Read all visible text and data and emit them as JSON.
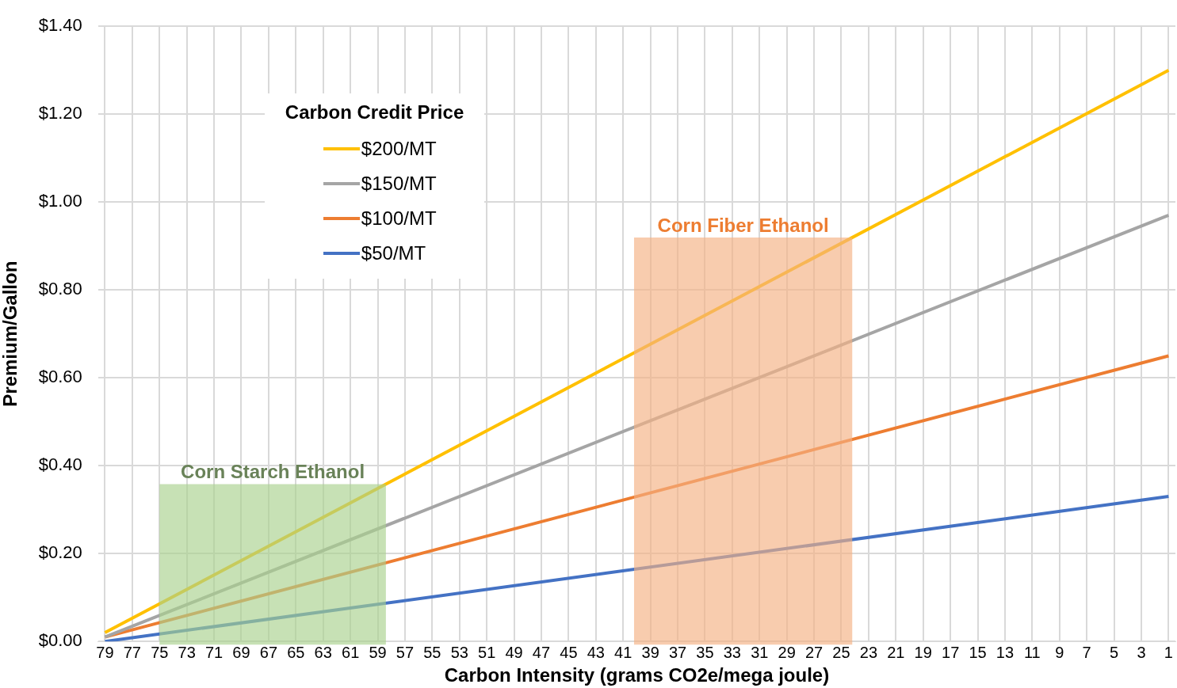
{
  "chart_data": {
    "type": "line",
    "xlabel": "Carbon Intensity (grams CO2e/mega joule)",
    "ylabel": "Premium/Gallon",
    "legend_title": "Carbon Credit Price",
    "x": [
      79,
      1
    ],
    "series": [
      {
        "name": "$200/MT",
        "color": "#ffc000",
        "values": [
          0.02,
          1.3
        ]
      },
      {
        "name": "$150/MT",
        "color": "#a5a5a5",
        "values": [
          0.01,
          0.97
        ]
      },
      {
        "name": "$100/MT",
        "color": "#ed7d31",
        "values": [
          0.01,
          0.65
        ]
      },
      {
        "name": "$50/MT",
        "color": "#4472c4",
        "values": [
          0.0,
          0.33
        ]
      }
    ],
    "xlim": [
      79.5,
      0.5
    ],
    "xticks": [
      79,
      77,
      75,
      73,
      71,
      69,
      67,
      65,
      63,
      61,
      59,
      57,
      55,
      53,
      51,
      49,
      47,
      45,
      43,
      41,
      39,
      37,
      35,
      33,
      31,
      29,
      27,
      25,
      23,
      21,
      19,
      17,
      15,
      13,
      11,
      9,
      7,
      5,
      3,
      1
    ],
    "ylim": [
      0,
      1.4
    ],
    "yticks": [
      {
        "value": 0,
        "label": "$0.00"
      },
      {
        "value": 0.2,
        "label": "$0.20"
      },
      {
        "value": 0.4,
        "label": "$0.40"
      },
      {
        "value": 0.6,
        "label": "$0.60"
      },
      {
        "value": 0.8,
        "label": "$0.80"
      },
      {
        "value": 1.0,
        "label": "$1.00"
      },
      {
        "value": 1.2,
        "label": "$1.20"
      },
      {
        "value": 1.4,
        "label": "$1.40"
      }
    ],
    "bands": [
      {
        "axis": "x",
        "from": 75,
        "to": 58.4,
        "label": "Corn Starch Ethanol",
        "color": "#a9d18e"
      },
      {
        "axis": "x",
        "from": 40.2,
        "to": 24.2,
        "label": "Corn Fiber Ethanol",
        "color": "#f4b183"
      }
    ],
    "grid": true,
    "legend": "top left",
    "marker": "none",
    "line_style": "solid"
  }
}
